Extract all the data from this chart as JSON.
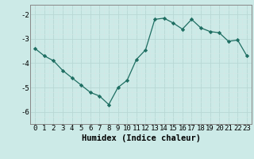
{
  "x": [
    0,
    1,
    2,
    3,
    4,
    5,
    6,
    7,
    8,
    9,
    10,
    11,
    12,
    13,
    14,
    15,
    16,
    17,
    18,
    19,
    20,
    21,
    22,
    23
  ],
  "y": [
    -3.4,
    -3.7,
    -3.9,
    -4.3,
    -4.6,
    -4.9,
    -5.2,
    -5.35,
    -5.7,
    -5.0,
    -4.7,
    -3.85,
    -3.45,
    -2.2,
    -2.15,
    -2.35,
    -2.6,
    -2.2,
    -2.55,
    -2.7,
    -2.75,
    -3.1,
    -3.05,
    -3.7
  ],
  "xlabel": "Humidex (Indice chaleur)",
  "ylim": [
    -6.5,
    -1.6
  ],
  "xlim": [
    -0.5,
    23.5
  ],
  "yticks": [
    -6,
    -5,
    -4,
    -3,
    -2
  ],
  "xticks": [
    0,
    1,
    2,
    3,
    4,
    5,
    6,
    7,
    8,
    9,
    10,
    11,
    12,
    13,
    14,
    15,
    16,
    17,
    18,
    19,
    20,
    21,
    22,
    23
  ],
  "line_color": "#1e6e62",
  "marker_color": "#1e6e62",
  "bg_color": "#cceae7",
  "grid_color_major": "#b8d8d5",
  "grid_color_minor": "#d4e8e6",
  "axis_color": "#888888",
  "xlabel_fontsize": 7.5,
  "tick_fontsize": 6.5
}
